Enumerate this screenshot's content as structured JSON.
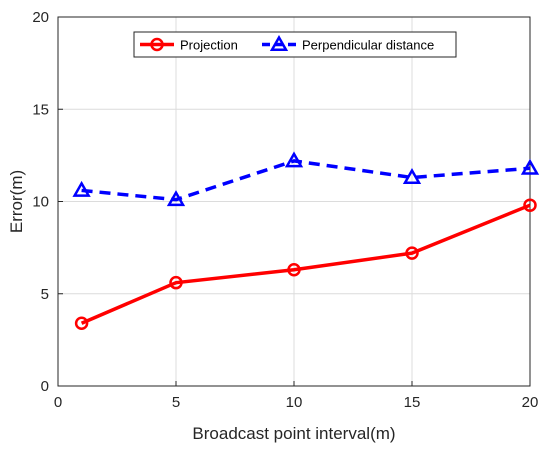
{
  "chart_data": {
    "type": "line",
    "title": "",
    "xlabel": "Broadcast point interval(m)",
    "ylabel": "Error(m)",
    "xlim": [
      0,
      20
    ],
    "ylim": [
      0,
      20
    ],
    "xticks": [
      "0",
      "5",
      "10",
      "15",
      "20"
    ],
    "yticks": [
      "0",
      "5",
      "10",
      "15",
      "20"
    ],
    "grid": true,
    "legend_position": "top",
    "x": [
      1,
      5,
      10,
      15,
      20
    ],
    "series": [
      {
        "name": "Projection",
        "values": [
          3.4,
          5.6,
          6.3,
          7.2,
          9.8
        ],
        "color": "#ff0000",
        "marker": "circle",
        "line_style": "solid"
      },
      {
        "name": "Perpendicular distance",
        "values": [
          10.6,
          10.1,
          12.2,
          11.3,
          11.8
        ],
        "color": "#0000ff",
        "marker": "triangle",
        "line_style": "dashed"
      }
    ]
  }
}
